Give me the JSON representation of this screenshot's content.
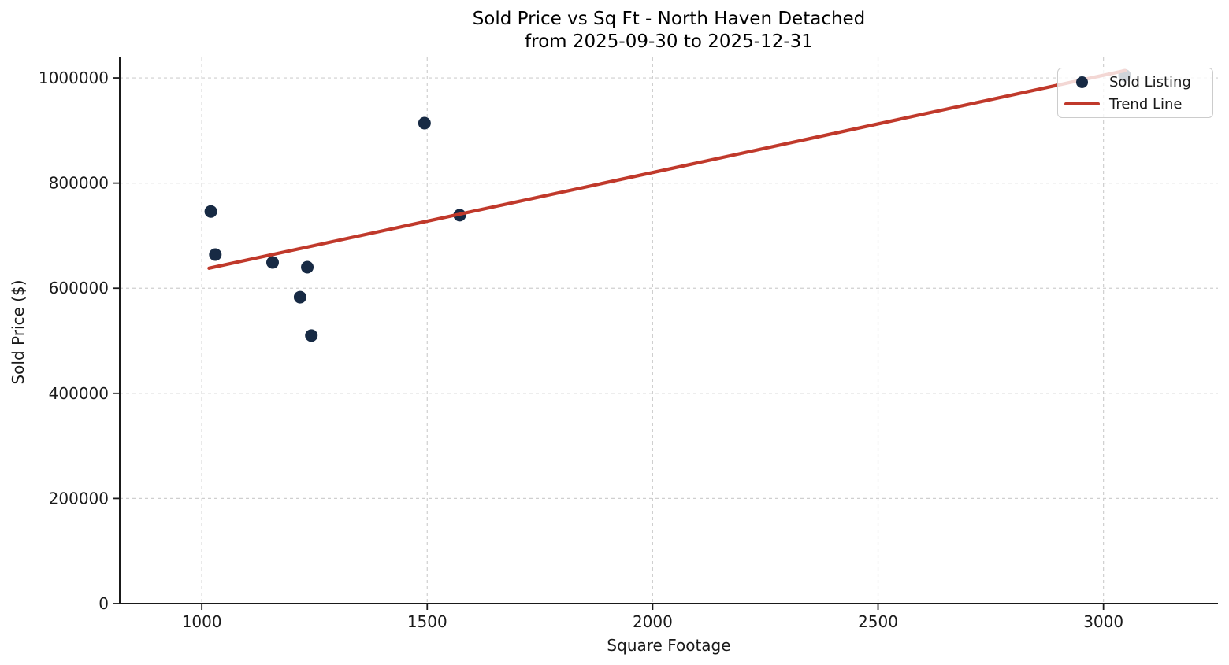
{
  "chart_data": {
    "type": "scatter",
    "title": "Sold Price vs Sq Ft - North Haven Detached",
    "subtitle": "from 2025-09-30 to 2025-12-31",
    "xlabel": "Square Footage",
    "ylabel": "Sold Price ($)",
    "xlim": [
      818,
      3254
    ],
    "ylim": [
      0,
      1039000
    ],
    "x_ticks": [
      1000,
      1500,
      2000,
      2500,
      3000
    ],
    "y_ticks": [
      0,
      200000,
      400000,
      600000,
      800000,
      1000000
    ],
    "grid": true,
    "grid_style": "dashed",
    "legend_position": "upper right",
    "legend": {
      "entries": [
        {
          "label": "Sold Listing",
          "marker": "point"
        },
        {
          "label": "Trend Line",
          "marker": "line"
        }
      ]
    },
    "colors": {
      "point": "#172a44",
      "trend": "#c0392b",
      "grid": "#cfcfcf",
      "spine": "#1a1a1a",
      "text": "#1a1a1a"
    },
    "series": [
      {
        "name": "Sold Listing",
        "type": "scatter",
        "points": [
          [
            1020,
            746000
          ],
          [
            1030,
            664000
          ],
          [
            1157,
            649000
          ],
          [
            1234,
            640000
          ],
          [
            1218,
            583000
          ],
          [
            1243,
            510000
          ],
          [
            1494,
            914000
          ],
          [
            1572,
            739000
          ],
          [
            3047,
            1005000
          ]
        ]
      },
      {
        "name": "Trend Line",
        "type": "line",
        "points": [
          [
            1016,
            638000
          ],
          [
            3048,
            1014000
          ]
        ]
      }
    ]
  }
}
